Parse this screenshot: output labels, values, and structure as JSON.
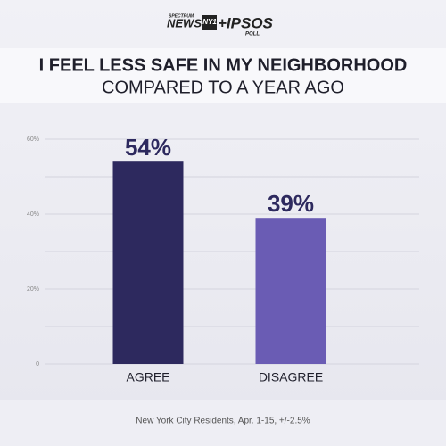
{
  "logo": {
    "spectrum": "SPECTRUM",
    "news": "NEWS",
    "ny1": "NY1",
    "partner": "+IPSOS",
    "poll": "POLL"
  },
  "chart_data": {
    "type": "bar",
    "title": "I FEEL LESS SAFE IN MY NEIGHBORHOOD",
    "subtitle": "COMPARED TO A YEAR AGO",
    "categories": [
      "AGREE",
      "DISAGREE"
    ],
    "values": [
      54,
      39
    ],
    "value_labels": [
      "54%",
      "39%"
    ],
    "colors": [
      "#2d295e",
      "#6a5cb4"
    ],
    "ylim": [
      0,
      60
    ],
    "yticks": [
      0,
      {
        "value": 20,
        "label": "20%"
      },
      {
        "value": 40,
        "label": "40%"
      },
      {
        "value": 60,
        "label": "60%"
      }
    ],
    "minor_yticks": [
      10,
      30,
      50
    ],
    "grid": true,
    "footnote": "New York City Residents, Apr. 1-15, +/-2.5%"
  }
}
